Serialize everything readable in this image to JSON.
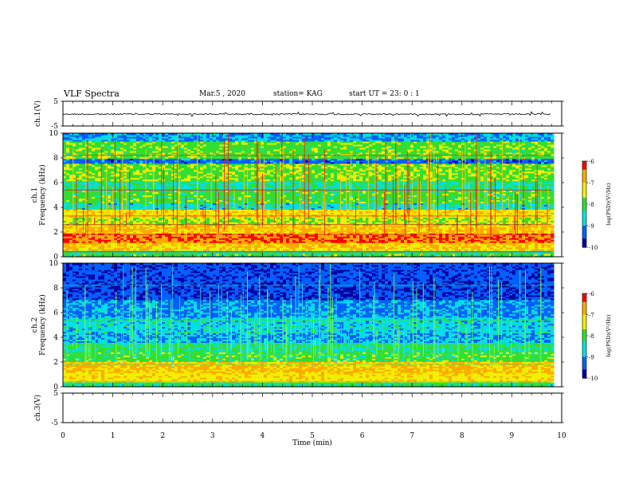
{
  "header": {
    "title": "VLF Spectra",
    "date": "Mar.5 , 2020",
    "station": "station= KAG",
    "start": "start UT = 23: 0 : 1"
  },
  "colorbar": {
    "label": "log(PSD)(V²/Hz)",
    "ticks": [
      "-6",
      "-7",
      "-8",
      "-9",
      "-10"
    ],
    "colors": [
      "#ff0000",
      "#ffaa00",
      "#f0f000",
      "#33dd33",
      "#00e0e0",
      "#0060ff",
      "#0000a0"
    ]
  },
  "chart_data": [
    {
      "type": "line",
      "panel": "ch.1 waveform",
      "ylabel": "ch.1(V)",
      "ylim": [
        -5,
        5
      ],
      "yticks": [
        "5",
        "-5"
      ],
      "series": [
        {
          "values": [
            -0.2,
            -0.2,
            -0.2,
            -0.2,
            -0.2,
            -0.2,
            -0.2,
            -0.2,
            -0.2,
            -0.2
          ]
        }
      ]
    },
    {
      "type": "heatmap",
      "panel": "ch.1 spectrogram",
      "ylabel": "ch.1 Frequency (kHz)",
      "ylim": [
        0,
        10
      ],
      "yticks": [
        "0",
        "2",
        "4",
        "6",
        "8",
        "10"
      ],
      "xlim": [
        0,
        9.8
      ],
      "clim": [
        -10,
        -6
      ],
      "bands": [
        {
          "f0": 0.0,
          "f1": 0.25,
          "level": -8.0
        },
        {
          "f0": 0.25,
          "f1": 0.45,
          "level": -8.3
        },
        {
          "f0": 0.45,
          "f1": 1.1,
          "level": -7.0
        },
        {
          "f0": 1.1,
          "f1": 1.9,
          "level": -6.4
        },
        {
          "f0": 1.9,
          "f1": 2.6,
          "level": -6.9
        },
        {
          "f0": 2.6,
          "f1": 3.2,
          "level": -7.6
        },
        {
          "f0": 3.2,
          "f1": 3.9,
          "level": -7.2
        },
        {
          "f0": 3.9,
          "f1": 4.3,
          "level": -8.6
        },
        {
          "f0": 4.3,
          "f1": 5.4,
          "level": -8.0
        },
        {
          "f0": 5.4,
          "f1": 6.2,
          "level": -8.4
        },
        {
          "f0": 6.2,
          "f1": 7.6,
          "level": -7.8
        },
        {
          "f0": 7.6,
          "f1": 7.9,
          "level": -9.3
        },
        {
          "f0": 7.9,
          "f1": 9.3,
          "level": -7.9
        },
        {
          "f0": 9.3,
          "f1": 10.0,
          "level": -9.0
        }
      ]
    },
    {
      "type": "heatmap",
      "panel": "ch.2 spectrogram",
      "ylabel": "ch.2 Frequency (kHz)",
      "ylim": [
        0,
        10
      ],
      "yticks": [
        "0",
        "2",
        "4",
        "6",
        "8",
        "10"
      ],
      "xlim": [
        0,
        9.8
      ],
      "clim": [
        -10,
        -6
      ],
      "bands": [
        {
          "f0": 0.0,
          "f1": 0.4,
          "level": -8.2
        },
        {
          "f0": 0.4,
          "f1": 1.2,
          "level": -7.2
        },
        {
          "f0": 1.2,
          "f1": 2.0,
          "level": -6.9
        },
        {
          "f0": 2.0,
          "f1": 2.8,
          "level": -8.0
        },
        {
          "f0": 2.8,
          "f1": 3.6,
          "level": -8.2
        },
        {
          "f0": 3.6,
          "f1": 4.4,
          "level": -9.0
        },
        {
          "f0": 4.4,
          "f1": 5.6,
          "level": -8.7
        },
        {
          "f0": 5.6,
          "f1": 7.0,
          "level": -9.1
        },
        {
          "f0": 7.0,
          "f1": 8.4,
          "level": -9.6
        },
        {
          "f0": 8.4,
          "f1": 10.0,
          "level": -9.5
        }
      ]
    },
    {
      "type": "line",
      "panel": "ch.3 waveform",
      "ylabel": "ch.3(V)",
      "ylim": [
        -5,
        5
      ],
      "yticks": [
        "5",
        "-5"
      ],
      "series": []
    },
    {
      "type": "axis",
      "panel": "time axis",
      "xlabel": "Time (min)",
      "xlim": [
        0,
        10
      ],
      "xticks": [
        "0",
        "1",
        "2",
        "3",
        "4",
        "5",
        "6",
        "7",
        "8",
        "9",
        "10"
      ]
    }
  ]
}
